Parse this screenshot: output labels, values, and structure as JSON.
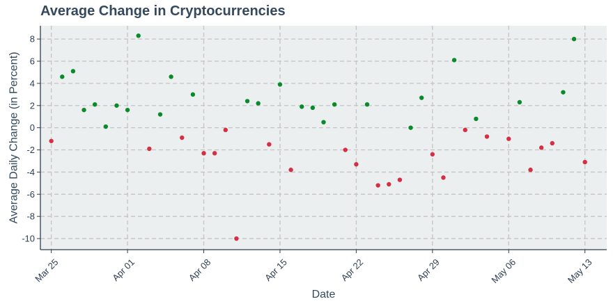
{
  "chart_data": {
    "type": "scatter",
    "title": "Average Change in Cryptocurrencies",
    "xlabel": "Date",
    "ylabel": "Average Daily Change (in Percent)",
    "x_range": [
      "2024-03-24",
      "2024-05-15"
    ],
    "ylim": [
      -11,
      9.2
    ],
    "grid": true,
    "x_ticks": [
      {
        "date": "2024-03-25",
        "label": "Mar 25"
      },
      {
        "date": "2024-04-01",
        "label": "Apr 01"
      },
      {
        "date": "2024-04-08",
        "label": "Apr 08"
      },
      {
        "date": "2024-04-15",
        "label": "Apr 15"
      },
      {
        "date": "2024-04-22",
        "label": "Apr 22"
      },
      {
        "date": "2024-04-29",
        "label": "Apr 29"
      },
      {
        "date": "2024-05-06",
        "label": "May 06"
      },
      {
        "date": "2024-05-13",
        "label": "May 13"
      }
    ],
    "y_ticks": [
      8,
      6,
      4,
      2,
      0,
      -2,
      -4,
      -6,
      -8,
      -10
    ],
    "colors": {
      "positive": "#0a8a2a",
      "negative": "#d62f45",
      "plot_bg": "#ebeff0",
      "grid": "#c4c4c4",
      "axis": "#2c3e50"
    },
    "points": [
      {
        "date": "2024-03-25",
        "value": -1.2
      },
      {
        "date": "2024-03-26",
        "value": 4.6
      },
      {
        "date": "2024-03-27",
        "value": 5.1
      },
      {
        "date": "2024-03-28",
        "value": 1.6
      },
      {
        "date": "2024-03-29",
        "value": 2.1
      },
      {
        "date": "2024-03-30",
        "value": 0.1
      },
      {
        "date": "2024-03-31",
        "value": 2.0
      },
      {
        "date": "2024-04-01",
        "value": 1.6
      },
      {
        "date": "2024-04-02",
        "value": 8.3
      },
      {
        "date": "2024-04-03",
        "value": -1.9
      },
      {
        "date": "2024-04-04",
        "value": 1.2
      },
      {
        "date": "2024-04-05",
        "value": 4.6
      },
      {
        "date": "2024-04-06",
        "value": -0.9
      },
      {
        "date": "2024-04-07",
        "value": 3.0
      },
      {
        "date": "2024-04-08",
        "value": -2.3
      },
      {
        "date": "2024-04-09",
        "value": -2.3
      },
      {
        "date": "2024-04-10",
        "value": -0.2
      },
      {
        "date": "2024-04-11",
        "value": -10.0
      },
      {
        "date": "2024-04-12",
        "value": 2.4
      },
      {
        "date": "2024-04-13",
        "value": 2.2
      },
      {
        "date": "2024-04-14",
        "value": -1.5
      },
      {
        "date": "2024-04-15",
        "value": 3.9
      },
      {
        "date": "2024-04-16",
        "value": -3.8
      },
      {
        "date": "2024-04-17",
        "value": 1.9
      },
      {
        "date": "2024-04-18",
        "value": 1.8
      },
      {
        "date": "2024-04-19",
        "value": 0.5
      },
      {
        "date": "2024-04-20",
        "value": 2.1
      },
      {
        "date": "2024-04-21",
        "value": -2.0
      },
      {
        "date": "2024-04-22",
        "value": -3.3
      },
      {
        "date": "2024-04-23",
        "value": 2.1
      },
      {
        "date": "2024-04-24",
        "value": -5.2
      },
      {
        "date": "2024-04-25",
        "value": -5.1
      },
      {
        "date": "2024-04-26",
        "value": -4.7
      },
      {
        "date": "2024-04-27",
        "value": 0.0
      },
      {
        "date": "2024-04-28",
        "value": 2.7
      },
      {
        "date": "2024-04-29",
        "value": -2.4
      },
      {
        "date": "2024-04-30",
        "value": -4.5
      },
      {
        "date": "2024-05-01",
        "value": 6.1
      },
      {
        "date": "2024-05-02",
        "value": -0.2
      },
      {
        "date": "2024-05-03",
        "value": 0.8
      },
      {
        "date": "2024-05-04",
        "value": -0.8
      },
      {
        "date": "2024-05-06",
        "value": -1.0
      },
      {
        "date": "2024-05-07",
        "value": 2.3
      },
      {
        "date": "2024-05-08",
        "value": -3.8
      },
      {
        "date": "2024-05-09",
        "value": -1.8
      },
      {
        "date": "2024-05-10",
        "value": -1.4
      },
      {
        "date": "2024-05-11",
        "value": 3.2
      },
      {
        "date": "2024-05-12",
        "value": 8.0
      },
      {
        "date": "2024-05-13",
        "value": -3.1
      }
    ]
  }
}
